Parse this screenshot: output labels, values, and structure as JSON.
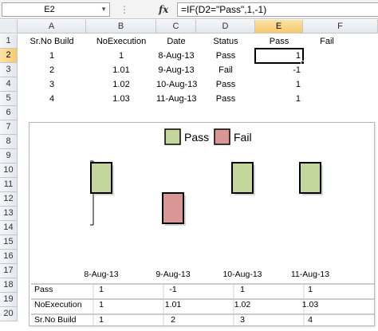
{
  "formula_bar": {
    "name_box": "E2",
    "fx_label": "fx",
    "formula": "=IF(D2=\"Pass\",1,-1)"
  },
  "columns": [
    "A",
    "B",
    "C",
    "D",
    "E",
    "F"
  ],
  "rows": [
    "1",
    "2",
    "3",
    "4",
    "5",
    "6",
    "7",
    "8",
    "9",
    "10",
    "11",
    "12",
    "13",
    "14",
    "15",
    "16",
    "17",
    "18",
    "19",
    "20"
  ],
  "selected_cell": "E2",
  "sheet": {
    "header": [
      "Sr.No Build",
      "NoExecution",
      "Date",
      "Status",
      "Pass",
      "Fail"
    ],
    "rows": [
      [
        "1",
        "1",
        "8-Aug-13",
        "Pass",
        "1",
        ""
      ],
      [
        "2",
        "1.01",
        "9-Aug-13",
        "Fail",
        "-1",
        ""
      ],
      [
        "3",
        "1.02",
        "10-Aug-13",
        "Pass",
        "1",
        ""
      ],
      [
        "4",
        "1.03",
        "11-Aug-13",
        "Pass",
        "1",
        ""
      ]
    ]
  },
  "chart_data": {
    "type": "bar",
    "categories": [
      "8-Aug-13",
      "9-Aug-13",
      "10-Aug-13",
      "11-Aug-13"
    ],
    "series": [
      {
        "name": "Pass",
        "values": [
          1,
          -1,
          1,
          1
        ],
        "color": "#c3d69b"
      }
    ],
    "colors": {
      "pass": "#c3d69b",
      "fail": "#d99694",
      "border": "#000000"
    },
    "legend": {
      "position": "top",
      "entries": [
        "Pass",
        "Fail"
      ]
    },
    "ylim": [
      -1,
      1
    ],
    "data_table": [
      {
        "label": "Pass",
        "values": [
          "1",
          "-1",
          "1",
          "1"
        ]
      },
      {
        "label": "NoExecution",
        "values": [
          "1",
          "1.01",
          "1.02",
          "1.03"
        ]
      },
      {
        "label": "Sr.No Build",
        "values": [
          "1",
          "2",
          "3",
          "4"
        ]
      }
    ]
  }
}
